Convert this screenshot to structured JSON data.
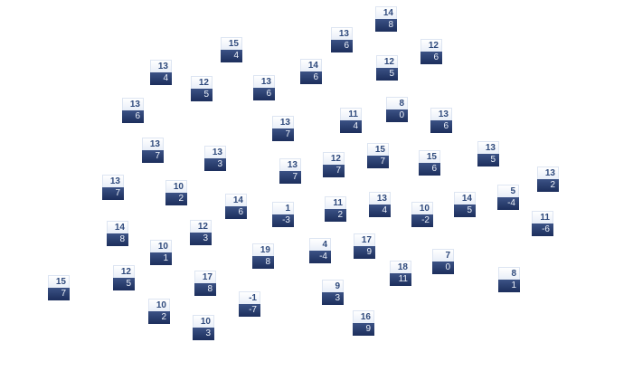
{
  "colors": {
    "tile_top": "#eef2fa",
    "tile_top_text": "#2f4a7c",
    "tile_bottom": "#2a3f70",
    "tile_bottom_text": "#eef2fa"
  },
  "tiles": [
    {
      "top": "15",
      "bottom": "4"
    },
    {
      "top": "13",
      "bottom": "4"
    },
    {
      "top": "12",
      "bottom": "5"
    },
    {
      "top": "13",
      "bottom": "6"
    },
    {
      "top": "13",
      "bottom": "6"
    },
    {
      "top": "13",
      "bottom": "7"
    },
    {
      "top": "13",
      "bottom": "3"
    },
    {
      "top": "13",
      "bottom": "7"
    },
    {
      "top": "13",
      "bottom": "7"
    },
    {
      "top": "14",
      "bottom": "8"
    },
    {
      "top": "13",
      "bottom": "6"
    },
    {
      "top": "12",
      "bottom": "6"
    },
    {
      "top": "14",
      "bottom": "6"
    },
    {
      "top": "12",
      "bottom": "5"
    },
    {
      "top": "8",
      "bottom": "0"
    },
    {
      "top": "11",
      "bottom": "4"
    },
    {
      "top": "13",
      "bottom": "6"
    },
    {
      "top": "15",
      "bottom": "7"
    },
    {
      "top": "12",
      "bottom": "7"
    },
    {
      "top": "15",
      "bottom": "6"
    },
    {
      "top": "13",
      "bottom": "5"
    },
    {
      "top": "13",
      "bottom": "2"
    },
    {
      "top": "13",
      "bottom": "7"
    },
    {
      "top": "10",
      "bottom": "2"
    },
    {
      "top": "14",
      "bottom": "6"
    },
    {
      "top": "1",
      "bottom": "-3"
    },
    {
      "top": "14",
      "bottom": "8"
    },
    {
      "top": "12",
      "bottom": "3"
    },
    {
      "top": "10",
      "bottom": "1"
    },
    {
      "top": "19",
      "bottom": "8"
    },
    {
      "top": "12",
      "bottom": "5"
    },
    {
      "top": "15",
      "bottom": "7"
    },
    {
      "top": "17",
      "bottom": "8"
    },
    {
      "top": "-1",
      "bottom": "-7"
    },
    {
      "top": "10",
      "bottom": "2"
    },
    {
      "top": "10",
      "bottom": "3"
    },
    {
      "top": "5",
      "bottom": "-4"
    },
    {
      "top": "11",
      "bottom": "2"
    },
    {
      "top": "13",
      "bottom": "4"
    },
    {
      "top": "10",
      "bottom": "-2"
    },
    {
      "top": "14",
      "bottom": "5"
    },
    {
      "top": "11",
      "bottom": "-6"
    },
    {
      "top": "4",
      "bottom": "-4"
    },
    {
      "top": "17",
      "bottom": "9"
    },
    {
      "top": "18",
      "bottom": "11"
    },
    {
      "top": "7",
      "bottom": "0"
    },
    {
      "top": "8",
      "bottom": "1"
    },
    {
      "top": "9",
      "bottom": "3"
    },
    {
      "top": "16",
      "bottom": "9"
    }
  ]
}
